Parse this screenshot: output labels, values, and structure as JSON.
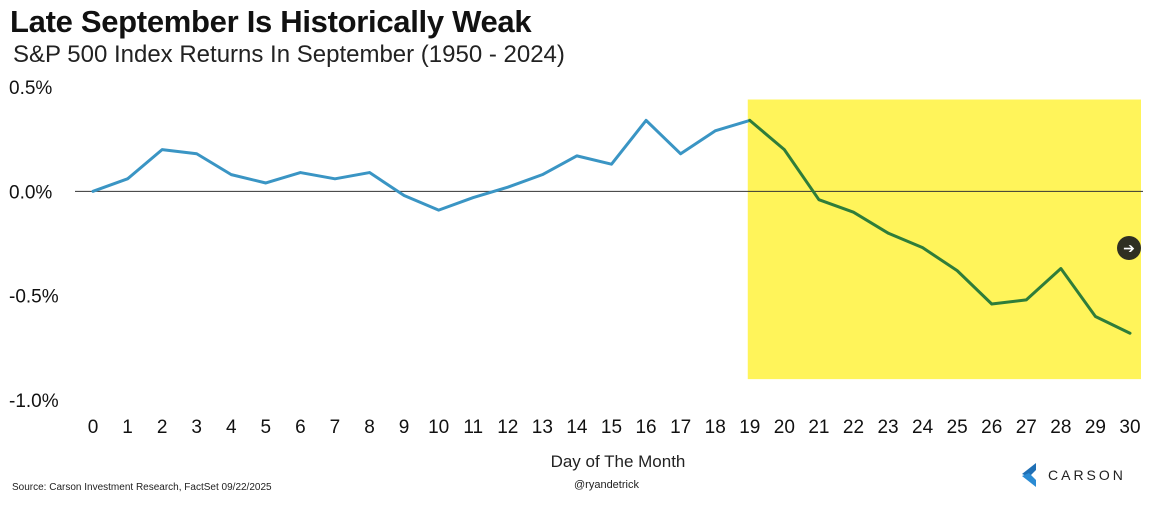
{
  "title": "Late September Is Historically Weak",
  "subtitle": "S&P 500 Index Returns In September (1950 - 2024)",
  "source": "Source: Carson Investment Research, FactSet 09/22/2025",
  "handle": "@ryandetrick",
  "logo": {
    "text": "CARSON",
    "icon": "carson-logo-icon",
    "color": "#1f6fb5"
  },
  "nav_button": {
    "icon": "arrow-right-icon",
    "glyph": "➔"
  },
  "colors": {
    "line_early": "#3a95c4",
    "line_late": "#2f7d3a",
    "highlight": "#fff45a",
    "zero_line": "#333333"
  },
  "chart_data": {
    "type": "line",
    "title": "Late September Is Historically Weak",
    "subtitle": "S&P 500 Index Returns In September (1950 - 2024)",
    "xlabel": "Day of The Month",
    "ylabel": "",
    "x": [
      0,
      1,
      2,
      3,
      4,
      5,
      6,
      7,
      8,
      9,
      10,
      11,
      12,
      13,
      14,
      15,
      16,
      17,
      18,
      19,
      20,
      21,
      22,
      23,
      24,
      25,
      26,
      27,
      28,
      29,
      30
    ],
    "series": [
      {
        "values": [
          0.0,
          0.06,
          0.2,
          0.18,
          0.08,
          0.04,
          0.09,
          0.06,
          0.09,
          -0.02,
          -0.09,
          -0.03,
          0.02,
          0.08,
          0.17,
          0.13,
          0.34,
          0.18,
          0.29,
          0.34,
          0.2,
          -0.04,
          -0.1,
          -0.2,
          -0.27,
          -0.38,
          -0.54,
          -0.52,
          -0.37,
          -0.6,
          -0.68
        ]
      }
    ],
    "y_ticks": [
      0.5,
      0.0,
      -0.5,
      -1.0
    ],
    "y_tick_labels": [
      "0.5%",
      "0.0%",
      "-0.5%",
      "-1.0%"
    ],
    "x_tick_labels": [
      "0",
      "1",
      "2",
      "3",
      "4",
      "5",
      "6",
      "7",
      "8",
      "9",
      "10",
      "11",
      "12",
      "13",
      "14",
      "15",
      "16",
      "17",
      "18",
      "19",
      "20",
      "21",
      "22",
      "23",
      "24",
      "25",
      "26",
      "27",
      "28",
      "29",
      "30"
    ],
    "ylim": [
      -1.0,
      0.5
    ],
    "xlim": [
      0,
      30
    ],
    "highlight": {
      "from_day": 19,
      "to_day": 30,
      "color": "#fff45a"
    },
    "grid": false,
    "legend": "none"
  }
}
